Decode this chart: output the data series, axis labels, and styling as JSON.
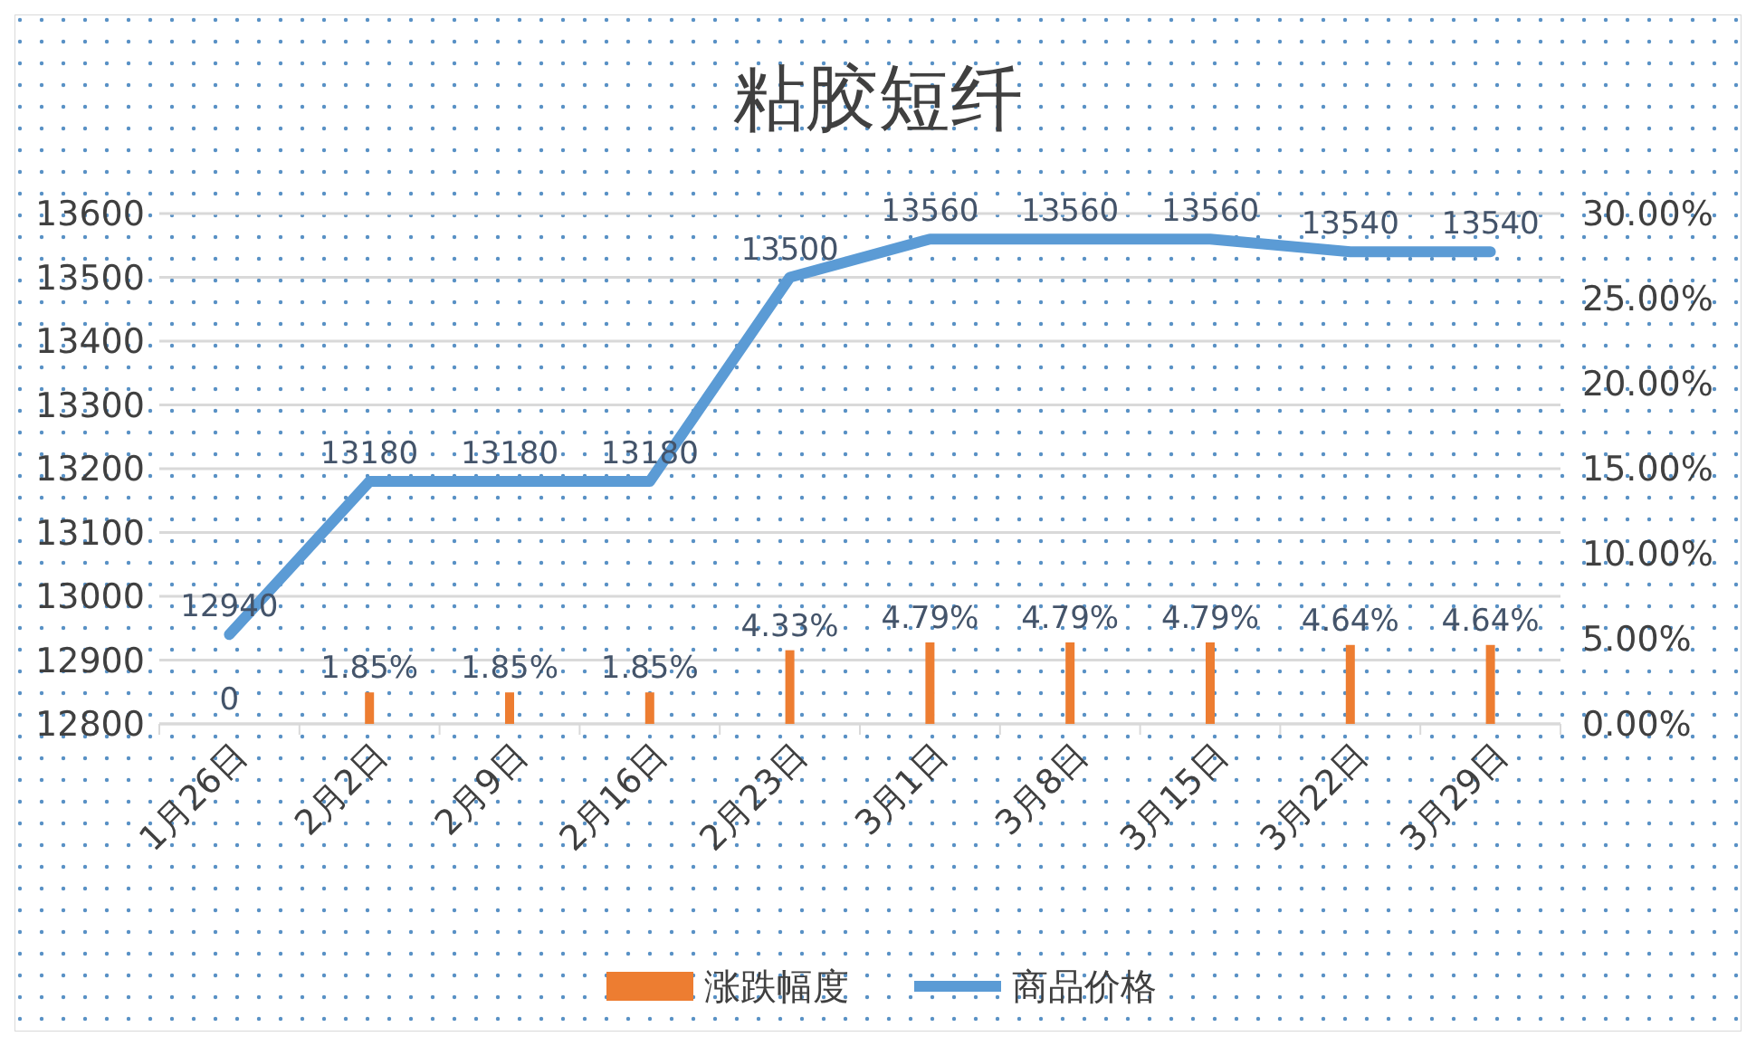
{
  "chart_data": {
    "type": "line",
    "title": "粘胶短纤",
    "categories": [
      "1月26日",
      "2月2日",
      "2月9日",
      "2月16日",
      "2月23日",
      "3月1日",
      "3月8日",
      "3月15日",
      "3月22日",
      "3月29日"
    ],
    "series": [
      {
        "name": "涨跌幅度",
        "type": "bar",
        "axis": "y2",
        "color": "#ed7d31",
        "values": [
          0,
          1.85,
          1.85,
          1.85,
          4.33,
          4.79,
          4.79,
          4.79,
          4.64,
          4.64
        ],
        "value_labels": [
          "0",
          "1.85%",
          "1.85%",
          "1.85%",
          "4.33%",
          "4.79%",
          "4.79%",
          "4.79%",
          "4.64%",
          "4.64%"
        ]
      },
      {
        "name": "商品价格",
        "color": "#5b9bd5",
        "values": [
          12940,
          13180,
          13180,
          13180,
          13500,
          13560,
          13560,
          13560,
          13540,
          13540
        ],
        "value_labels": [
          "12940",
          "13180",
          "13180",
          "13180",
          "13500",
          "13560",
          "13560",
          "13560",
          "13540",
          "13540"
        ]
      }
    ],
    "ylim": [
      12800,
      13600
    ],
    "yticks": [
      12800,
      12900,
      13000,
      13100,
      13200,
      13300,
      13400,
      13500,
      13600
    ],
    "y2lim": [
      0,
      30
    ],
    "y2ticks": [
      {
        "value": 0,
        "label": "0.00%"
      },
      {
        "value": 5,
        "label": "5.00%"
      },
      {
        "value": 10,
        "label": "10.00%"
      },
      {
        "value": 15,
        "label": "15.00%"
      },
      {
        "value": 20,
        "label": "20.00%"
      },
      {
        "value": 25,
        "label": "25.00%"
      },
      {
        "value": 30,
        "label": "30.00%"
      }
    ],
    "grid": "y",
    "legend": "bottom",
    "marker": "none",
    "line_style": "solid"
  }
}
